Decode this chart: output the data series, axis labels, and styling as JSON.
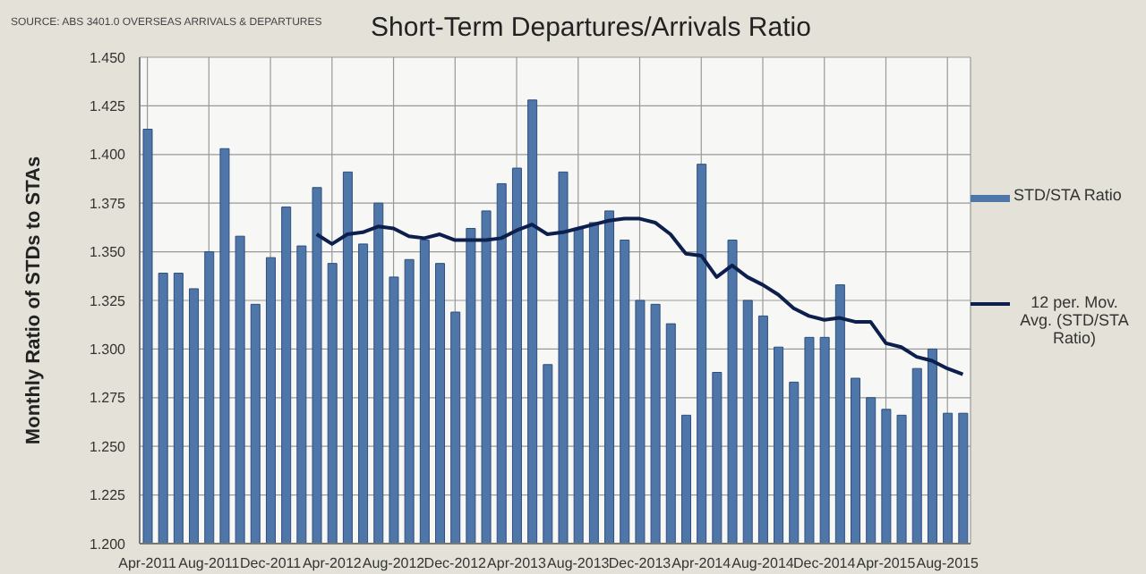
{
  "chart_data": {
    "type": "bar",
    "title": "Short-Term Departures/Arrivals Ratio",
    "ylabel": "Monthly Ratio of STDs to STAs",
    "annotations": [
      "SOURCE: ABS 3401.0 OVERSEAS ARRIVALS & DEPARTURES"
    ],
    "categories": [
      "Apr-2011",
      null,
      null,
      null,
      "Aug-2011",
      null,
      null,
      null,
      "Dec-2011",
      null,
      null,
      null,
      "Apr-2012",
      null,
      null,
      null,
      "Aug-2012",
      null,
      null,
      null,
      "Dec-2012",
      null,
      null,
      null,
      "Apr-2013",
      null,
      null,
      null,
      "Aug-2013",
      null,
      null,
      null,
      "Dec-2013",
      null,
      null,
      null,
      "Apr-2014",
      null,
      null,
      null,
      "Aug-2014",
      null,
      null,
      null,
      "Dec-2014",
      null,
      null,
      null,
      "Apr-2015",
      null,
      null,
      null,
      "Aug-2015",
      null
    ],
    "series": [
      {
        "name": "STD/STA Ratio",
        "color": "#4f76a8",
        "values": [
          1.413,
          1.339,
          1.339,
          1.331,
          1.35,
          1.403,
          1.358,
          1.323,
          1.347,
          1.373,
          1.353,
          1.383,
          1.344,
          1.391,
          1.354,
          1.375,
          1.337,
          1.346,
          1.356,
          1.344,
          1.319,
          1.362,
          1.371,
          1.385,
          1.393,
          1.428,
          1.292,
          1.391,
          1.362,
          1.365,
          1.371,
          1.356,
          1.325,
          1.323,
          1.313,
          1.266,
          1.395,
          1.288,
          1.356,
          1.325,
          1.317,
          1.301,
          1.283,
          1.306,
          1.306,
          1.333,
          1.285,
          1.275,
          1.269,
          1.266,
          1.29,
          1.3,
          1.267,
          1.267
        ]
      },
      {
        "name": "12 per. Mov. Avg. (STD/STA Ratio)",
        "type": "line",
        "color": "#0d1f4d",
        "values": [
          null,
          null,
          null,
          null,
          null,
          null,
          null,
          null,
          null,
          null,
          null,
          1.359,
          1.354,
          1.359,
          1.36,
          1.363,
          1.362,
          1.358,
          1.357,
          1.359,
          1.356,
          1.356,
          1.356,
          1.357,
          1.361,
          1.364,
          1.359,
          1.36,
          1.362,
          1.364,
          1.366,
          1.367,
          1.367,
          1.365,
          1.359,
          1.349,
          1.348,
          1.337,
          1.343,
          1.337,
          1.333,
          1.328,
          1.321,
          1.317,
          1.315,
          1.316,
          1.314,
          1.314,
          1.303,
          1.301,
          1.296,
          1.294,
          1.29,
          1.287
        ]
      }
    ],
    "ylim": [
      1.2,
      1.45
    ],
    "yticks": [
      {
        "value": 1.2,
        "label": "1.200"
      },
      {
        "value": 1.225,
        "label": "1.225"
      },
      {
        "value": 1.25,
        "label": "1.250"
      },
      {
        "value": 1.275,
        "label": "1.275"
      },
      {
        "value": 1.3,
        "label": "1.300"
      },
      {
        "value": 1.325,
        "label": "1.325"
      },
      {
        "value": 1.35,
        "label": "1.350"
      },
      {
        "value": 1.375,
        "label": "1.375"
      },
      {
        "value": 1.4,
        "label": "1.400"
      },
      {
        "value": 1.425,
        "label": "1.425"
      },
      {
        "value": 1.45,
        "label": "1.450"
      }
    ],
    "grid": true,
    "legend": "right",
    "marker": "none",
    "line_style": "solid"
  }
}
